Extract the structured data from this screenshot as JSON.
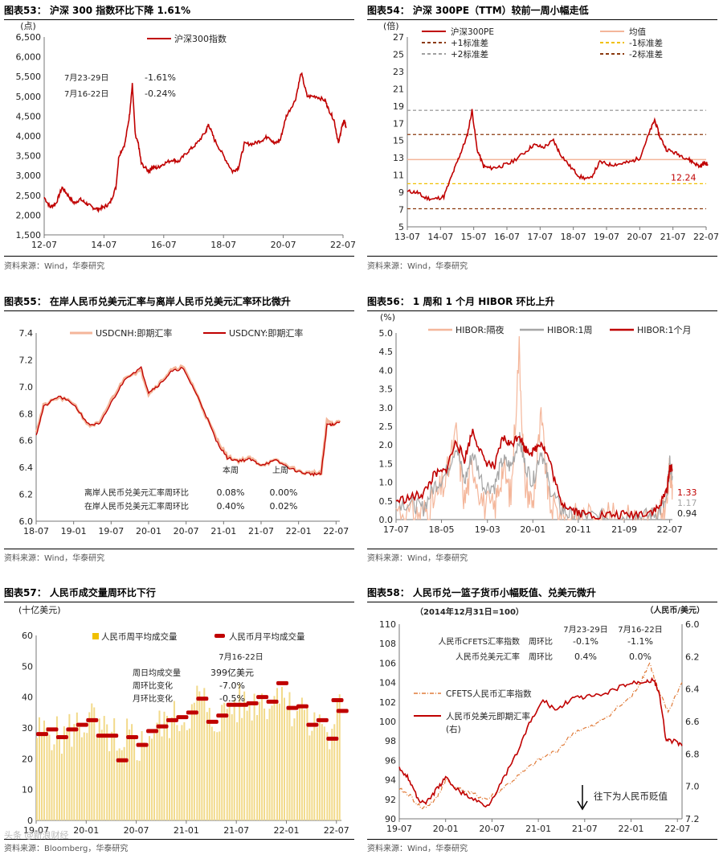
{
  "source_label": "资料来源：Wind，华泰研究",
  "source_label_bbg": "资料来源：Bloomberg，华泰研究",
  "watermark": "头条 @新浪财经",
  "colors": {
    "red": "#C00000",
    "pink": "#F4B69A",
    "gray": "#A6A6A6",
    "brown": "#8B3A0F",
    "orange": "#F0C000",
    "dash_gray": "#A0A0A0",
    "bar": "#F2DA8A",
    "cfets": "#E07B39"
  },
  "chart_data": [
    {
      "id": "c53",
      "type": "line",
      "title": "图表53：  沪深 300 指数环比下降 1.61%",
      "unit": "(点)",
      "ylim": [
        1500,
        6500
      ],
      "yticks": [
        "1,500",
        "2,000",
        "2,500",
        "3,000",
        "3,500",
        "4,000",
        "4,500",
        "5,000",
        "5,500",
        "6,000",
        "6,500"
      ],
      "xticks": [
        "12-07",
        "14-07",
        "16-07",
        "18-07",
        "20-07",
        "22-07"
      ],
      "legend": [
        "沪深300指数"
      ],
      "series": [
        {
          "name": "沪深300指数",
          "x": [
            2012.5,
            2012.7,
            2012.9,
            2013.1,
            2013.3,
            2013.5,
            2013.7,
            2013.9,
            2014.1,
            2014.3,
            2014.5,
            2014.7,
            2014.9,
            2015.0,
            2015.2,
            2015.35,
            2015.45,
            2015.55,
            2015.65,
            2015.75,
            2016.0,
            2016.1,
            2016.3,
            2016.5,
            2016.8,
            2017.0,
            2017.3,
            2017.6,
            2017.9,
            2018.0,
            2018.2,
            2018.5,
            2018.8,
            2019.0,
            2019.2,
            2019.5,
            2019.8,
            2020.0,
            2020.2,
            2020.4,
            2020.6,
            2020.9,
            2021.1,
            2021.3,
            2021.6,
            2021.9,
            2022.0,
            2022.2,
            2022.35,
            2022.45,
            2022.55,
            2022.6
          ],
          "values": [
            2450,
            2200,
            2300,
            2700,
            2500,
            2300,
            2400,
            2300,
            2200,
            2150,
            2200,
            2300,
            2700,
            3500,
            3800,
            4500,
            5300,
            4000,
            3800,
            3300,
            3100,
            3200,
            3200,
            3300,
            3400,
            3350,
            3600,
            3800,
            4100,
            4300,
            3900,
            3500,
            3100,
            3200,
            3800,
            3800,
            3900,
            4000,
            3800,
            3900,
            4500,
            4900,
            5600,
            5000,
            5000,
            4900,
            4700,
            4400,
            3800,
            4200,
            4400,
            4200
          ]
        }
      ],
      "annotations": [
        {
          "label": "7月23-29日",
          "value": "-1.61%"
        },
        {
          "label": "7月16-22日",
          "value": "-0.24%"
        }
      ]
    },
    {
      "id": "c54",
      "type": "line",
      "title": "图表54：  沪深 300PE（TTM）较前一周小幅走低",
      "unit": "(倍)",
      "ylim": [
        5,
        27
      ],
      "yticks": [
        "5",
        "7",
        "9",
        "11",
        "13",
        "15",
        "17",
        "19",
        "21",
        "23",
        "25",
        "27"
      ],
      "xticks": [
        "13-07",
        "14-07",
        "15-07",
        "16-07",
        "17-07",
        "18-07",
        "19-07",
        "20-07",
        "21-07",
        "22-07"
      ],
      "legend": [
        "沪深300PE",
        "均值",
        "+1标准差",
        "-1标准差",
        "+2标准差",
        "-2标准差"
      ],
      "hlines": [
        {
          "name": "均值",
          "value": 12.8
        },
        {
          "name": "+1标准差",
          "value": 15.7
        },
        {
          "name": "-1标准差",
          "value": 10.0
        },
        {
          "name": "+2标准差",
          "value": 18.5
        },
        {
          "name": "-2标准差",
          "value": 7.1
        }
      ],
      "series": [
        {
          "name": "沪深300PE",
          "x": [
            2013.5,
            2013.8,
            2014.0,
            2014.3,
            2014.6,
            2014.9,
            2015.1,
            2015.3,
            2015.45,
            2015.6,
            2015.8,
            2016.0,
            2016.3,
            2016.6,
            2017.0,
            2017.3,
            2017.6,
            2017.9,
            2018.1,
            2018.4,
            2018.7,
            2019.0,
            2019.3,
            2019.6,
            2019.9,
            2020.2,
            2020.5,
            2020.8,
            2020.95,
            2021.1,
            2021.3,
            2021.6,
            2021.9,
            2022.1,
            2022.3,
            2022.45,
            2022.55
          ],
          "values": [
            9.1,
            9.0,
            8.4,
            8.2,
            8.5,
            11.5,
            13.5,
            15.5,
            18.5,
            14.0,
            12.0,
            11.8,
            12.0,
            12.4,
            13.5,
            14.5,
            14.2,
            15.0,
            13.5,
            12.0,
            10.8,
            10.5,
            12.5,
            12.2,
            12.3,
            12.5,
            13.0,
            16.0,
            17.4,
            15.5,
            14.0,
            13.5,
            13.0,
            12.5,
            12.0,
            12.4,
            12.24
          ]
        }
      ],
      "end_label": "12.24"
    },
    {
      "id": "c55",
      "type": "line",
      "title": "图表55：  在岸人民币兑美元汇率与离岸人民币兑美元汇率环比微升",
      "ylim": [
        6.0,
        7.4
      ],
      "yticks": [
        "6.0",
        "6.2",
        "6.4",
        "6.6",
        "6.8",
        "7.0",
        "7.2",
        "7.4"
      ],
      "xticks": [
        "18-07",
        "19-01",
        "19-07",
        "20-01",
        "20-07",
        "21-01",
        "21-07",
        "22-01",
        "22-07"
      ],
      "legend": [
        "USDCNH:即期汇率",
        "USDCNY:即期汇率"
      ],
      "series": [
        {
          "name": "USDCNH:即期汇率",
          "x": [
            2018.5,
            2018.6,
            2018.8,
            2019.0,
            2019.2,
            2019.35,
            2019.5,
            2019.7,
            2019.9,
            2020.0,
            2020.15,
            2020.3,
            2020.45,
            2020.6,
            2020.75,
            2020.9,
            2021.05,
            2021.2,
            2021.35,
            2021.5,
            2021.7,
            2021.9,
            2022.05,
            2022.2,
            2022.3,
            2022.38,
            2022.45,
            2022.55
          ],
          "values": [
            6.66,
            6.86,
            6.92,
            6.88,
            6.71,
            6.73,
            6.9,
            7.08,
            7.12,
            6.95,
            7.03,
            7.12,
            7.15,
            7.0,
            6.8,
            6.62,
            6.48,
            6.45,
            6.47,
            6.42,
            6.45,
            6.4,
            6.36,
            6.36,
            6.35,
            6.75,
            6.72,
            6.75
          ]
        },
        {
          "name": "USDCNY:即期汇率",
          "x": [
            2018.5,
            2018.6,
            2018.8,
            2019.0,
            2019.2,
            2019.35,
            2019.5,
            2019.7,
            2019.9,
            2020.0,
            2020.15,
            2020.3,
            2020.45,
            2020.6,
            2020.75,
            2020.9,
            2021.05,
            2021.2,
            2021.35,
            2021.5,
            2021.7,
            2021.9,
            2022.05,
            2022.2,
            2022.3,
            2022.38,
            2022.45,
            2022.55
          ],
          "values": [
            6.64,
            6.85,
            6.93,
            6.87,
            6.72,
            6.72,
            6.88,
            7.07,
            7.14,
            6.96,
            7.02,
            7.11,
            7.14,
            6.99,
            6.81,
            6.6,
            6.47,
            6.45,
            6.46,
            6.42,
            6.45,
            6.39,
            6.36,
            6.35,
            6.35,
            6.72,
            6.72,
            6.74
          ]
        }
      ],
      "table": {
        "headers": [
          "本周",
          "上周"
        ],
        "rows": [
          {
            "label": "离岸人民币兑美元汇率周环比",
            "a": "0.08%",
            "b": "0.00%"
          },
          {
            "label": "在岸人民币兑美元汇率周环比",
            "a": "0.40%",
            "b": "0.02%"
          }
        ]
      }
    },
    {
      "id": "c56",
      "type": "line",
      "title": "图表56：  1 周和 1 个月 HIBOR 环比上升",
      "unit": "(%)",
      "ylim": [
        0,
        5
      ],
      "yticks": [
        "0.0",
        "0.5",
        "1.0",
        "1.5",
        "2.0",
        "2.5",
        "3.0",
        "3.5",
        "4.0",
        "4.5",
        "5.0"
      ],
      "xticks": [
        "17-07",
        "18-05",
        "19-03",
        "20-01",
        "20-11",
        "21-09",
        "22-07"
      ],
      "legend": [
        "HIBOR:隔夜",
        "HIBOR:1周",
        "HIBOR:1个月"
      ],
      "series": [
        {
          "name": "HIBOR:隔夜",
          "x": [
            2017.5,
            2017.8,
            2018.0,
            2018.2,
            2018.4,
            2018.6,
            2018.75,
            2018.9,
            2019.1,
            2019.3,
            2019.45,
            2019.6,
            2019.75,
            2019.85,
            2020.0,
            2020.15,
            2020.3,
            2020.5,
            2020.7,
            2020.9,
            2021.2,
            2021.5,
            2021.8,
            2022.1,
            2022.3,
            2022.45,
            2022.5,
            2022.55
          ],
          "values": [
            0.3,
            0.1,
            0.2,
            0.5,
            1.0,
            2.3,
            0.5,
            1.5,
            0.4,
            0.3,
            1.4,
            0.6,
            4.6,
            1.0,
            0.4,
            2.7,
            0.4,
            0.1,
            0.05,
            0.05,
            0.03,
            0.03,
            0.03,
            0.05,
            0.05,
            0.4,
            1.4,
            0.94
          ]
        },
        {
          "name": "HIBOR:1周",
          "x": [
            2017.5,
            2017.8,
            2018.0,
            2018.2,
            2018.4,
            2018.6,
            2018.75,
            2018.9,
            2019.1,
            2019.3,
            2019.45,
            2019.6,
            2019.75,
            2019.85,
            2020.0,
            2020.15,
            2020.3,
            2020.5,
            2020.7,
            2020.9,
            2021.2,
            2021.5,
            2021.8,
            2022.1,
            2022.3,
            2022.45,
            2022.5,
            2022.55
          ],
          "values": [
            0.5,
            0.4,
            0.3,
            0.9,
            1.2,
            2.0,
            1.0,
            1.8,
            0.9,
            0.9,
            1.6,
            1.4,
            2.2,
            1.5,
            1.0,
            1.9,
            0.9,
            0.3,
            0.1,
            0.08,
            0.07,
            0.06,
            0.08,
            0.1,
            0.2,
            0.5,
            1.5,
            1.17
          ]
        },
        {
          "name": "HIBOR:1个月",
          "x": [
            2017.5,
            2017.8,
            2018.0,
            2018.2,
            2018.4,
            2018.6,
            2018.75,
            2018.9,
            2019.1,
            2019.3,
            2019.45,
            2019.6,
            2019.75,
            2019.85,
            2020.0,
            2020.15,
            2020.3,
            2020.5,
            2020.7,
            2020.9,
            2021.2,
            2021.5,
            2021.8,
            2022.1,
            2022.3,
            2022.45,
            2022.5,
            2022.55
          ],
          "values": [
            0.5,
            0.6,
            0.7,
            1.2,
            1.3,
            2.1,
            1.6,
            2.4,
            1.6,
            1.4,
            2.2,
            2.0,
            2.3,
            1.9,
            1.8,
            2.1,
            1.6,
            0.5,
            0.3,
            0.15,
            0.12,
            0.12,
            0.13,
            0.2,
            0.3,
            0.8,
            1.4,
            1.33
          ]
        }
      ],
      "end_labels": [
        "1.33",
        "1.17",
        "0.94"
      ]
    },
    {
      "id": "c57",
      "type": "bar",
      "title": "图表57：  人民币成交量周环比下行",
      "unit": "(十亿美元)",
      "ylim": [
        0,
        60
      ],
      "yticks": [
        "0",
        "10",
        "20",
        "30",
        "40",
        "50",
        "60"
      ],
      "xticks": [
        "19-07",
        "20-01",
        "20-07",
        "21-01",
        "21-07",
        "22-01",
        "22-07"
      ],
      "legend": [
        "人民币周平均成交量",
        "人民币月平均成交量"
      ],
      "monthly": {
        "x": [
          2019.5,
          2019.6,
          2019.7,
          2019.8,
          2019.9,
          2020.0,
          2020.1,
          2020.2,
          2020.3,
          2020.4,
          2020.5,
          2020.6,
          2020.7,
          2020.8,
          2020.9,
          2021.0,
          2021.1,
          2021.2,
          2021.3,
          2021.4,
          2021.5,
          2021.6,
          2021.7,
          2021.8,
          2021.9,
          2022.0,
          2022.1,
          2022.2,
          2022.3,
          2022.4,
          2022.5
        ],
        "values": [
          28,
          29.5,
          27,
          29.5,
          31,
          32.5,
          27.5,
          27.5,
          19.5,
          27,
          24.5,
          29,
          30.5,
          32.5,
          33.5,
          35,
          39.5,
          32,
          34,
          37.5,
          37.5,
          38,
          40,
          38.5,
          44.5,
          36.5,
          37,
          31,
          32.5,
          26.5,
          35.5
        ]
      },
      "last_monthly": 39,
      "annotations": {
        "header": "7月16-22日",
        "rows": [
          {
            "label": "周日均成交量",
            "value": "399亿美元"
          },
          {
            "label": "周环比变化",
            "value": "-7.0%"
          },
          {
            "label": "月环比变化",
            "value": "-0.5%"
          }
        ]
      }
    },
    {
      "id": "c58",
      "type": "line",
      "title": "图表58：  人民币兑一篮子货币小幅贬值、兑美元微升",
      "left_unit": "（2014年12月31日=100）",
      "right_unit": "（人民币/美元）",
      "ylim": [
        90,
        110
      ],
      "y2lim": [
        7.2,
        6.0
      ],
      "yticks": [
        "90",
        "92",
        "94",
        "96",
        "98",
        "100",
        "102",
        "104",
        "106",
        "108",
        "110"
      ],
      "y2ticks": [
        "6.0",
        "6.2",
        "6.4",
        "6.6",
        "6.8",
        "7.0",
        "7.2"
      ],
      "xticks": [
        "19-07",
        "20-01",
        "20-07",
        "21-01",
        "21-07",
        "22-01",
        "22-07"
      ],
      "legend": [
        "CFETS人民币汇率指数",
        "人民币兑美元即期汇率\n(右)"
      ],
      "series": [
        {
          "name": "CFETS人民币汇率指数",
          "axis": "left",
          "x": [
            2019.5,
            2019.6,
            2019.75,
            2019.9,
            2020.0,
            2020.15,
            2020.3,
            2020.45,
            2020.6,
            2020.8,
            2021.0,
            2021.2,
            2021.4,
            2021.6,
            2021.8,
            2022.0,
            2022.1,
            2022.2,
            2022.3,
            2022.4,
            2022.55
          ],
          "values": [
            93,
            92.5,
            91,
            92,
            94,
            93,
            92.5,
            92,
            93,
            94.5,
            96,
            97,
            99,
            99.5,
            101,
            102.5,
            104,
            106,
            103,
            101,
            104
          ]
        },
        {
          "name": "人民币兑美元即期汇率(右)",
          "axis": "right",
          "x": [
            2019.5,
            2019.6,
            2019.7,
            2019.8,
            2019.9,
            2020.0,
            2020.15,
            2020.3,
            2020.45,
            2020.6,
            2020.75,
            2020.9,
            2021.05,
            2021.2,
            2021.35,
            2021.5,
            2021.7,
            2021.9,
            2022.05,
            2022.15,
            2022.25,
            2022.3,
            2022.38,
            2022.45,
            2022.55
          ],
          "values": [
            6.88,
            6.95,
            7.08,
            7.1,
            7.02,
            6.95,
            7.03,
            7.08,
            7.12,
            6.98,
            6.82,
            6.62,
            6.47,
            6.53,
            6.46,
            6.45,
            6.44,
            6.38,
            6.36,
            6.35,
            6.35,
            6.42,
            6.72,
            6.72,
            6.75
          ]
        }
      ],
      "table": {
        "col1": "7月23-29日",
        "col2": "7月16-22日",
        "rows": [
          {
            "label": "人民币CFETS汇率指数",
            "kind": "周环比",
            "a": "-0.1%",
            "b": "-1.1%"
          },
          {
            "label": "人民币兑美元汇率",
            "kind": "周环比",
            "a": "0.4%",
            "b": "0.0%"
          }
        ]
      },
      "note": "往下为人民币贬值"
    }
  ]
}
